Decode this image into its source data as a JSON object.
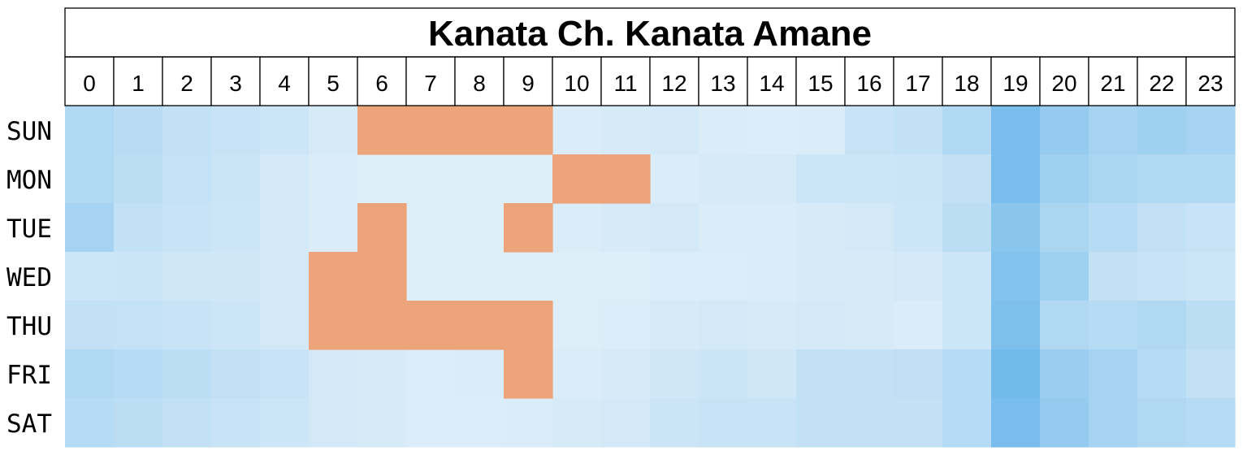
{
  "chart_data": {
    "type": "heatmap",
    "title": "Kanata Ch. Kanata Amane",
    "hours": [
      "0",
      "1",
      "2",
      "3",
      "4",
      "5",
      "6",
      "7",
      "8",
      "9",
      "10",
      "11",
      "12",
      "13",
      "14",
      "15",
      "16",
      "17",
      "18",
      "19",
      "20",
      "21",
      "22",
      "23"
    ],
    "days": [
      "SUN",
      "MON",
      "TUE",
      "WED",
      "THU",
      "FRI",
      "SAT"
    ],
    "colors": {
      "low": "#e4f1fa",
      "high": "#72baea",
      "highlight": "#eda47a"
    },
    "values": [
      [
        0.45,
        0.38,
        0.3,
        0.25,
        0.2,
        0.12,
        0.05,
        0.05,
        0.05,
        0.05,
        0.1,
        0.12,
        0.14,
        0.1,
        0.08,
        0.1,
        0.25,
        0.3,
        0.45,
        0.95,
        0.7,
        0.55,
        0.6,
        0.55
      ],
      [
        0.45,
        0.35,
        0.28,
        0.22,
        0.15,
        0.1,
        0.05,
        0.05,
        0.05,
        0.05,
        0.05,
        0.05,
        0.1,
        0.12,
        0.12,
        0.2,
        0.2,
        0.22,
        0.3,
        0.95,
        0.6,
        0.5,
        0.45,
        0.45
      ],
      [
        0.55,
        0.3,
        0.25,
        0.2,
        0.15,
        0.1,
        0.08,
        0.05,
        0.05,
        0.08,
        0.1,
        0.12,
        0.15,
        0.1,
        0.1,
        0.12,
        0.15,
        0.2,
        0.35,
        0.8,
        0.5,
        0.4,
        0.3,
        0.25
      ],
      [
        0.2,
        0.22,
        0.18,
        0.18,
        0.15,
        0.12,
        0.1,
        0.05,
        0.05,
        0.05,
        0.05,
        0.05,
        0.08,
        0.08,
        0.1,
        0.12,
        0.12,
        0.15,
        0.2,
        0.85,
        0.6,
        0.3,
        0.25,
        0.2
      ],
      [
        0.3,
        0.28,
        0.25,
        0.2,
        0.15,
        0.1,
        0.08,
        0.05,
        0.05,
        0.05,
        0.05,
        0.08,
        0.12,
        0.15,
        0.12,
        0.15,
        0.12,
        0.1,
        0.2,
        0.9,
        0.45,
        0.4,
        0.45,
        0.35
      ],
      [
        0.45,
        0.4,
        0.35,
        0.3,
        0.25,
        0.15,
        0.12,
        0.08,
        0.1,
        0.15,
        0.1,
        0.12,
        0.18,
        0.22,
        0.18,
        0.3,
        0.3,
        0.32,
        0.4,
        1.0,
        0.65,
        0.55,
        0.4,
        0.3
      ],
      [
        0.4,
        0.35,
        0.3,
        0.25,
        0.2,
        0.15,
        0.12,
        0.08,
        0.08,
        0.1,
        0.12,
        0.15,
        0.22,
        0.25,
        0.25,
        0.3,
        0.3,
        0.3,
        0.4,
        0.95,
        0.7,
        0.55,
        0.45,
        0.4
      ]
    ],
    "highlights": [
      [
        6,
        7,
        8,
        9
      ],
      [
        10,
        11
      ],
      [
        6,
        9
      ],
      [
        5,
        6
      ],
      [
        5,
        6,
        7,
        8,
        9
      ],
      [
        9
      ],
      []
    ]
  }
}
